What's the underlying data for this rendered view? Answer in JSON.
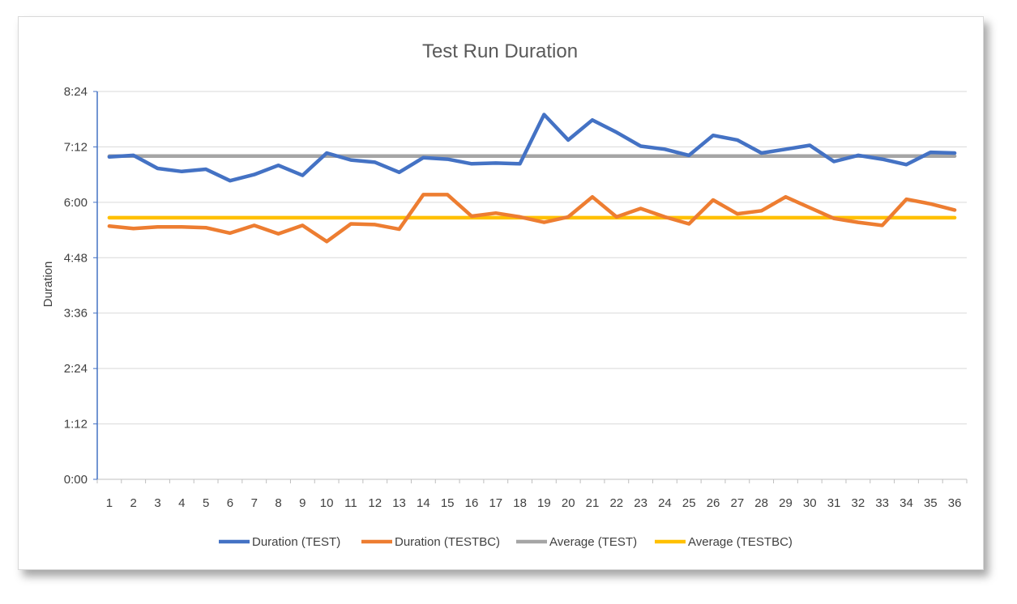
{
  "chart_data": {
    "type": "line",
    "title": "Test Run Duration",
    "xlabel": "",
    "ylabel": "Duration",
    "y_unit": "minutes",
    "ylim": [
      0,
      504
    ],
    "y_ticks": [
      {
        "value": 0,
        "label": "0:00"
      },
      {
        "value": 72,
        "label": "1:12"
      },
      {
        "value": 144,
        "label": "2:24"
      },
      {
        "value": 216,
        "label": "3:36"
      },
      {
        "value": 288,
        "label": "4:48"
      },
      {
        "value": 360,
        "label": "6:00"
      },
      {
        "value": 432,
        "label": "7:12"
      },
      {
        "value": 504,
        "label": "8:24"
      }
    ],
    "categories": [
      "1",
      "2",
      "3",
      "4",
      "5",
      "6",
      "7",
      "8",
      "9",
      "10",
      "11",
      "12",
      "13",
      "14",
      "15",
      "16",
      "17",
      "18",
      "19",
      "20",
      "21",
      "22",
      "23",
      "24",
      "25",
      "26",
      "27",
      "28",
      "29",
      "30",
      "31",
      "32",
      "33",
      "34",
      "35",
      "36"
    ],
    "grid": "horizontal",
    "legend_position": "bottom",
    "series": [
      {
        "name": "Duration (TEST)",
        "color": "#4472c4",
        "values": [
          419,
          421,
          404,
          400,
          403,
          388,
          396,
          408,
          395,
          424,
          415,
          412,
          399,
          418,
          416,
          410,
          411,
          410,
          474,
          441,
          467,
          451,
          433,
          429,
          421,
          447,
          441,
          424,
          429,
          434,
          413,
          421,
          416,
          409,
          425,
          424
        ]
      },
      {
        "name": "Duration (TESTBC)",
        "color": "#ed7d31",
        "values": [
          329,
          326,
          328,
          328,
          327,
          320,
          330,
          319,
          330,
          309,
          332,
          331,
          325,
          370,
          370,
          342,
          346,
          341,
          334,
          341,
          367,
          341,
          352,
          341,
          332,
          363,
          345,
          349,
          367,
          353,
          339,
          334,
          330,
          364,
          358,
          350
        ]
      },
      {
        "name": "Average (TEST)",
        "color": "#a5a5a5",
        "values": [
          420,
          420,
          420,
          420,
          420,
          420,
          420,
          420,
          420,
          420,
          420,
          420,
          420,
          420,
          420,
          420,
          420,
          420,
          420,
          420,
          420,
          420,
          420,
          420,
          420,
          420,
          420,
          420,
          420,
          420,
          420,
          420,
          420,
          420,
          420,
          420
        ]
      },
      {
        "name": "Average (TESTBC)",
        "color": "#ffc000",
        "values": [
          340,
          340,
          340,
          340,
          340,
          340,
          340,
          340,
          340,
          340,
          340,
          340,
          340,
          340,
          340,
          340,
          340,
          340,
          340,
          340,
          340,
          340,
          340,
          340,
          340,
          340,
          340,
          340,
          340,
          340,
          340,
          340,
          340,
          340,
          340,
          340
        ]
      }
    ]
  }
}
